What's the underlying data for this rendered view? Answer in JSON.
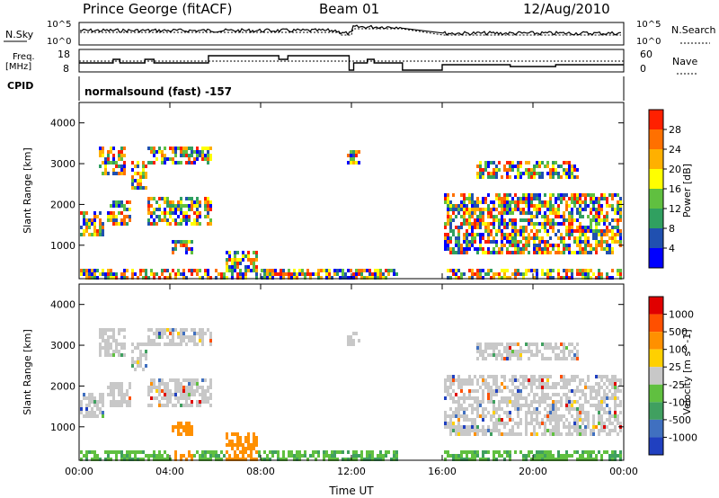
{
  "header": {
    "station": "Prince George (fitACF)",
    "beam": "Beam 01",
    "date": "12/Aug/2010"
  },
  "noise_panel": {
    "left_label": "N.Sky",
    "right_label": "N.Search",
    "left_ticks": [
      "10^5",
      "10^0"
    ],
    "right_ticks": [
      "10^5",
      "10^0"
    ]
  },
  "freq_panel": {
    "left_label_line1": "Freq.",
    "left_label_line2": "[MHz]",
    "left_ticks": [
      "18",
      "8"
    ],
    "right_label": "Nave",
    "right_ticks": [
      "60",
      "0"
    ]
  },
  "cpid": {
    "label": "CPID",
    "mode": "normalsound (fast) -157"
  },
  "colors": {
    "power_scale": [
      "#0000ff",
      "#2050b0",
      "#30a060",
      "#60c040",
      "#ffff00",
      "#ffb000",
      "#ff7000",
      "#ff2000"
    ],
    "velocity_scale": [
      "#2040c0",
      "#4070c0",
      "#40a060",
      "#60c040",
      "#c8c8c8",
      "#ffd000",
      "#ff9000",
      "#ff5000",
      "#e00000"
    ]
  },
  "chart_data": [
    {
      "type": "heatmap",
      "name": "power",
      "ylabel": "Slant Range [km]",
      "yticks": [
        "4000",
        "3000",
        "2000",
        "1000"
      ],
      "ylim": [
        180,
        4500
      ],
      "xlim": [
        "00:00",
        "24:00"
      ],
      "colorbar_label": "Power [dB]",
      "colorbar_ticks": [
        "28",
        "24",
        "20",
        "16",
        "12",
        "8",
        "4"
      ],
      "data_gap": [
        "14:15",
        "16:00"
      ]
    },
    {
      "type": "heatmap",
      "name": "velocity",
      "ylabel": "Slant Range [km]",
      "yticks": [
        "4000",
        "3000",
        "2000",
        "1000"
      ],
      "ylim": [
        180,
        4500
      ],
      "xlim": [
        "00:00",
        "24:00"
      ],
      "colorbar_label": "Velocity [m s^-1]",
      "colorbar_ticks": [
        "1000",
        "500",
        "100",
        "25",
        "-25",
        "-100",
        "-500",
        "-1000"
      ],
      "data_gap": [
        "14:15",
        "16:00"
      ]
    }
  ],
  "x_axis": {
    "ticks": [
      "00:00",
      "04:00",
      "08:00",
      "12:00",
      "16:00",
      "20:00",
      "00:00"
    ],
    "label": "Time UT"
  }
}
